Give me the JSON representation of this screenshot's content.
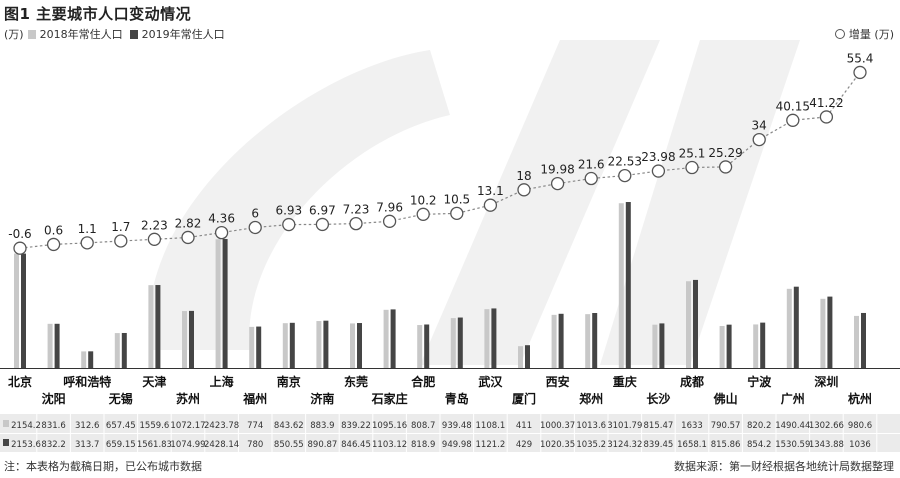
{
  "title": "图1 主要城市人口变动情况",
  "legend": {
    "unit": "(万)",
    "series_2018": "2018年常住人口",
    "series_2019": "2019年常住人口",
    "change": "增量 (万)"
  },
  "colors": {
    "bar_2018": "#c8c8c8",
    "bar_2019": "#454545",
    "line": "#888888",
    "table_bg": "#ebebeb",
    "watermark": "#f1f1f1"
  },
  "footer": {
    "note": "注：本表格为截稿日期，已公布城市数据",
    "source": "数据来源：第一财经根据各地统计局数据整理"
  },
  "chart_data": {
    "type": "bar",
    "categories": [
      "北京",
      "沈阳",
      "呼和浩特",
      "无锡",
      "天津",
      "苏州",
      "上海",
      "福州",
      "南京",
      "济南",
      "东莞",
      "石家庄",
      "合肥",
      "青岛",
      "武汉",
      "厦门",
      "西安",
      "郑州",
      "重庆",
      "长沙",
      "成都",
      "佛山",
      "宁波",
      "广州",
      "深圳",
      "杭州"
    ],
    "series": [
      {
        "name": "2018年常住人口",
        "values": [
          2154.2,
          831.6,
          312.6,
          657.45,
          1559.6,
          1072.17,
          2423.78,
          774,
          843.62,
          883.9,
          839.22,
          1095.16,
          808.7,
          939.48,
          1108.1,
          411,
          1000.37,
          1013.6,
          3101.79,
          815.47,
          1633,
          790.57,
          820.2,
          1490.44,
          1302.66,
          980.6
        ]
      },
      {
        "name": "2019年常住人口",
        "values": [
          2153.6,
          832.2,
          313.7,
          659.15,
          1561.83,
          1074.99,
          2428.14,
          780,
          850.55,
          890.87,
          846.45,
          1103.12,
          818.9,
          949.98,
          1121.2,
          429,
          1020.35,
          1035.2,
          3124.32,
          839.45,
          1658.1,
          815.86,
          854.2,
          1530.59,
          1343.88,
          1036
        ]
      }
    ],
    "change": {
      "name": "增量 (万)",
      "type": "line",
      "values": [
        -0.6,
        0.6,
        1.1,
        1.7,
        2.23,
        2.82,
        4.36,
        6,
        6.93,
        6.97,
        7.23,
        7.96,
        10.2,
        10.5,
        13.1,
        18,
        19.98,
        21.6,
        22.53,
        23.98,
        25.1,
        25.29,
        34,
        40.15,
        41.22,
        55.4
      ],
      "labels": [
        "-0.6",
        "0.6",
        "1.1",
        "1.7",
        "2.23",
        "2.82",
        "4.36",
        "6",
        "6.93",
        "6.97",
        "7.23",
        "7.96",
        "10.2",
        "10.5",
        "13.1",
        "18",
        "19.98",
        "21.6",
        "22.53",
        "23.98",
        "25.1",
        "25.29",
        "34",
        "40.15",
        "41.22",
        "55.4"
      ]
    },
    "table": {
      "row_2018": [
        "2154.2",
        "831.6",
        "312.6",
        "657.45",
        "1559.6",
        "1072.17",
        "2423.78",
        "774",
        "843.62",
        "883.9",
        "839.22",
        "1095.16",
        "808.7",
        "939.48",
        "1108.1",
        "411",
        "1000.37",
        "1013.6",
        "3101.79",
        "815.47",
        "1633",
        "790.57",
        "820.2",
        "1490.44",
        "1302.66",
        "980.6"
      ],
      "row_2019": [
        "2153.6",
        "832.2",
        "313.7",
        "659.15",
        "1561.83",
        "1074.99",
        "2428.14",
        "780",
        "850.55",
        "890.87",
        "846.45",
        "1103.12",
        "818.9",
        "949.98",
        "1121.2",
        "429",
        "1020.35",
        "1035.2",
        "3124.32",
        "839.45",
        "1658.1",
        "815.86",
        "854.2",
        "1530.59",
        "1343.88",
        "1036"
      ]
    },
    "ylim_population": [
      0,
      3200
    ],
    "ylim_change": [
      -5,
      60
    ],
    "grid": false
  }
}
